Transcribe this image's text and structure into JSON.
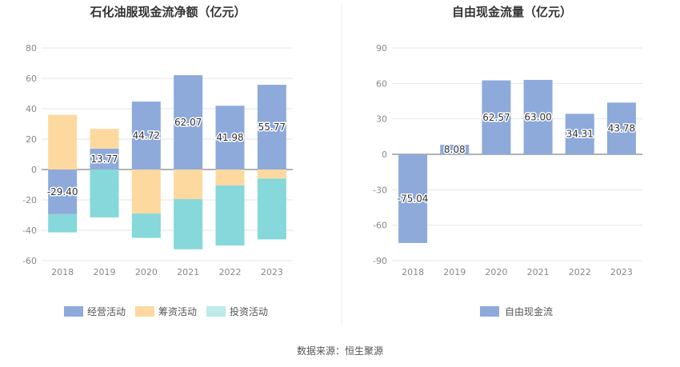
{
  "source": "数据来源：恒生聚源",
  "chart_data": [
    {
      "type": "bar",
      "stacked": true,
      "title": "石化油服现金流净额（亿元）",
      "categories": [
        "2018",
        "2019",
        "2020",
        "2021",
        "2022",
        "2023"
      ],
      "ylim": [
        -60,
        80
      ],
      "yticks": [
        -60,
        -40,
        -20,
        0,
        20,
        40,
        60,
        80
      ],
      "grid": true,
      "legend_position": "bottom",
      "series": [
        {
          "name": "经营活动",
          "color": "#8eaadb",
          "values": [
            -29.4,
            13.77,
            44.72,
            62.07,
            41.98,
            55.77
          ]
        },
        {
          "name": "筹资活动",
          "color": "#fdd9a0",
          "values": [
            36.0,
            13.0,
            -29.0,
            -19.5,
            -10.5,
            -6.0
          ]
        },
        {
          "name": "投资活动",
          "color": "#86d8da",
          "values": [
            -12.0,
            -31.5,
            -16.0,
            -33.0,
            -39.5,
            -40.0
          ]
        }
      ],
      "data_labels": [
        {
          "category": "2018",
          "text": "-29.40"
        },
        {
          "category": "2019",
          "text": "13.77"
        },
        {
          "category": "2020",
          "text": "44.72"
        },
        {
          "category": "2021",
          "text": "62.07"
        },
        {
          "category": "2022",
          "text": "41.98"
        },
        {
          "category": "2023",
          "text": "55.77"
        }
      ]
    },
    {
      "type": "bar",
      "title": "自由现金流量（亿元）",
      "categories": [
        "2018",
        "2019",
        "2020",
        "2021",
        "2022",
        "2023"
      ],
      "ylim": [
        -90,
        90
      ],
      "yticks": [
        -90,
        -60,
        -30,
        0,
        30,
        60,
        90
      ],
      "grid": true,
      "legend_position": "bottom",
      "series": [
        {
          "name": "自由现金流",
          "color": "#8eaadb",
          "values": [
            -75.04,
            8.08,
            62.57,
            63.0,
            34.31,
            43.78
          ]
        }
      ],
      "data_labels": [
        {
          "category": "2018",
          "text": "-75.04"
        },
        {
          "category": "2019",
          "text": "8.08"
        },
        {
          "category": "2020",
          "text": "62.57"
        },
        {
          "category": "2021",
          "text": "63.00"
        },
        {
          "category": "2022",
          "text": "34.31"
        },
        {
          "category": "2023",
          "text": "43.78"
        }
      ]
    }
  ]
}
